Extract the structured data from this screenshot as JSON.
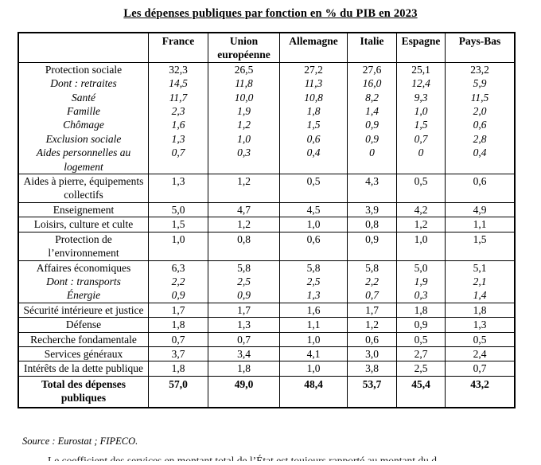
{
  "title": "Les dépenses publiques par fonction en % du PIB en 2023",
  "table": {
    "columns": [
      "France",
      "Union européenne",
      "Allemagne",
      "Italie",
      "Espagne",
      "Pays-Bas"
    ],
    "groups": [
      {
        "lines": [
          {
            "label": "Protection sociale",
            "italic": false,
            "bold": false,
            "values": [
              "32,3",
              "26,5",
              "27,2",
              "27,6",
              "25,1",
              "23,2"
            ]
          },
          {
            "label": "Dont : retraites",
            "italic": true,
            "bold": false,
            "values": [
              "14,5",
              "11,8",
              "11,3",
              "16,0",
              "12,4",
              "5,9"
            ]
          },
          {
            "label": "Santé",
            "italic": true,
            "bold": false,
            "values": [
              "11,7",
              "10,0",
              "10,8",
              "8,2",
              "9,3",
              "11,5"
            ]
          },
          {
            "label": "Famille",
            "italic": true,
            "bold": false,
            "values": [
              "2,3",
              "1,9",
              "1,8",
              "1,4",
              "1,0",
              "2,0"
            ]
          },
          {
            "label": "Chômage",
            "italic": true,
            "bold": false,
            "values": [
              "1,6",
              "1,2",
              "1,5",
              "0,9",
              "1,5",
              "0,6"
            ]
          },
          {
            "label": "Exclusion sociale",
            "italic": true,
            "bold": false,
            "values": [
              "1,3",
              "1,0",
              "0,6",
              "0,9",
              "0,7",
              "2,8"
            ]
          },
          {
            "label": "Aides personnelles au logement",
            "italic": true,
            "bold": false,
            "values": [
              "0,7",
              "0,3",
              "0,4",
              "0",
              "0",
              "0,4"
            ]
          }
        ]
      },
      {
        "lines": [
          {
            "label": "Aides à pierre, équipements collectifs",
            "italic": false,
            "bold": false,
            "values": [
              "1,3",
              "1,2",
              "0,5",
              "4,3",
              "0,5",
              "0,6"
            ]
          }
        ]
      },
      {
        "lines": [
          {
            "label": "Enseignement",
            "italic": false,
            "bold": false,
            "values": [
              "5,0",
              "4,7",
              "4,5",
              "3,9",
              "4,2",
              "4,9"
            ]
          }
        ]
      },
      {
        "lines": [
          {
            "label": "Loisirs, culture et culte",
            "italic": false,
            "bold": false,
            "values": [
              "1,5",
              "1,2",
              "1,0",
              "0,8",
              "1,2",
              "1,1"
            ]
          }
        ]
      },
      {
        "lines": [
          {
            "label": "Protection de l’environnement",
            "italic": false,
            "bold": false,
            "values": [
              "1,0",
              "0,8",
              "0,6",
              "0,9",
              "1,0",
              "1,5"
            ]
          }
        ]
      },
      {
        "lines": [
          {
            "label": "Affaires économiques",
            "italic": false,
            "bold": false,
            "values": [
              "6,3",
              "5,8",
              "5,8",
              "5,8",
              "5,0",
              "5,1"
            ]
          },
          {
            "label": "Dont : transports",
            "italic": true,
            "bold": false,
            "values": [
              "2,2",
              "2,5",
              "2,5",
              "2,2",
              "1,9",
              "2,1"
            ]
          },
          {
            "label": "Énergie",
            "italic": true,
            "bold": false,
            "values": [
              "0,9",
              "0,9",
              "1,3",
              "0,7",
              "0,3",
              "1,4"
            ]
          }
        ]
      },
      {
        "lines": [
          {
            "label": "Sécurité intérieure et justice",
            "italic": false,
            "bold": false,
            "values": [
              "1,7",
              "1,7",
              "1,6",
              "1,7",
              "1,8",
              "1,8"
            ]
          }
        ]
      },
      {
        "lines": [
          {
            "label": "Défense",
            "italic": false,
            "bold": false,
            "values": [
              "1,8",
              "1,3",
              "1,1",
              "1,2",
              "0,9",
              "1,3"
            ]
          }
        ]
      },
      {
        "lines": [
          {
            "label": "Recherche fondamentale",
            "italic": false,
            "bold": false,
            "values": [
              "0,7",
              "0,7",
              "1,0",
              "0,6",
              "0,5",
              "0,5"
            ]
          }
        ]
      },
      {
        "lines": [
          {
            "label": "Services généraux",
            "italic": false,
            "bold": false,
            "values": [
              "3,7",
              "3,4",
              "4,1",
              "3,0",
              "2,7",
              "2,4"
            ]
          }
        ]
      },
      {
        "lines": [
          {
            "label": "Intérêts de la dette publique",
            "italic": false,
            "bold": false,
            "values": [
              "1,8",
              "1,8",
              "1,0",
              "3,8",
              "2,5",
              "0,7"
            ]
          }
        ]
      },
      {
        "lines": [
          {
            "label": "Total des dépenses publiques",
            "italic": false,
            "bold": true,
            "values": [
              "57,0",
              "49,0",
              "48,4",
              "53,7",
              "45,4",
              "43,2"
            ]
          }
        ]
      }
    ]
  },
  "source": "Source : Eurostat ; FIPECO.",
  "footer_fragment": "Le coefficient des services en montant total de l’État est toujours rapporté au montant du d",
  "colors": {
    "text": "#000000",
    "border": "#000000",
    "background": "#ffffff"
  },
  "chart_data": {
    "type": "table",
    "title": "Les dépenses publiques par fonction en % du PIB en 2023",
    "columns": [
      "France",
      "Union européenne",
      "Allemagne",
      "Italie",
      "Espagne",
      "Pays-Bas"
    ],
    "rows": [
      {
        "label": "Protection sociale",
        "values": [
          32.3,
          26.5,
          27.2,
          27.6,
          25.1,
          23.2
        ]
      },
      {
        "label": "Dont : retraites",
        "values": [
          14.5,
          11.8,
          11.3,
          16.0,
          12.4,
          5.9
        ]
      },
      {
        "label": "Santé",
        "values": [
          11.7,
          10.0,
          10.8,
          8.2,
          9.3,
          11.5
        ]
      },
      {
        "label": "Famille",
        "values": [
          2.3,
          1.9,
          1.8,
          1.4,
          1.0,
          2.0
        ]
      },
      {
        "label": "Chômage",
        "values": [
          1.6,
          1.2,
          1.5,
          0.9,
          1.5,
          0.6
        ]
      },
      {
        "label": "Exclusion sociale",
        "values": [
          1.3,
          1.0,
          0.6,
          0.9,
          0.7,
          2.8
        ]
      },
      {
        "label": "Aides personnelles au logement",
        "values": [
          0.7,
          0.3,
          0.4,
          0,
          0,
          0.4
        ]
      },
      {
        "label": "Aides à pierre, équipements collectifs",
        "values": [
          1.3,
          1.2,
          0.5,
          4.3,
          0.5,
          0.6
        ]
      },
      {
        "label": "Enseignement",
        "values": [
          5.0,
          4.7,
          4.5,
          3.9,
          4.2,
          4.9
        ]
      },
      {
        "label": "Loisirs, culture et culte",
        "values": [
          1.5,
          1.2,
          1.0,
          0.8,
          1.2,
          1.1
        ]
      },
      {
        "label": "Protection de l’environnement",
        "values": [
          1.0,
          0.8,
          0.6,
          0.9,
          1.0,
          1.5
        ]
      },
      {
        "label": "Affaires économiques",
        "values": [
          6.3,
          5.8,
          5.8,
          5.8,
          5.0,
          5.1
        ]
      },
      {
        "label": "Dont : transports",
        "values": [
          2.2,
          2.5,
          2.5,
          2.2,
          1.9,
          2.1
        ]
      },
      {
        "label": "Énergie",
        "values": [
          0.9,
          0.9,
          1.3,
          0.7,
          0.3,
          1.4
        ]
      },
      {
        "label": "Sécurité intérieure et justice",
        "values": [
          1.7,
          1.7,
          1.6,
          1.7,
          1.8,
          1.8
        ]
      },
      {
        "label": "Défense",
        "values": [
          1.8,
          1.3,
          1.1,
          1.2,
          0.9,
          1.3
        ]
      },
      {
        "label": "Recherche fondamentale",
        "values": [
          0.7,
          0.7,
          1.0,
          0.6,
          0.5,
          0.5
        ]
      },
      {
        "label": "Services généraux",
        "values": [
          3.7,
          3.4,
          4.1,
          3.0,
          2.7,
          2.4
        ]
      },
      {
        "label": "Intérêts de la dette publique",
        "values": [
          1.8,
          1.8,
          1.0,
          3.8,
          2.5,
          0.7
        ]
      },
      {
        "label": "Total des dépenses publiques",
        "values": [
          57.0,
          49.0,
          48.4,
          53.7,
          45.4,
          43.2
        ]
      }
    ]
  }
}
